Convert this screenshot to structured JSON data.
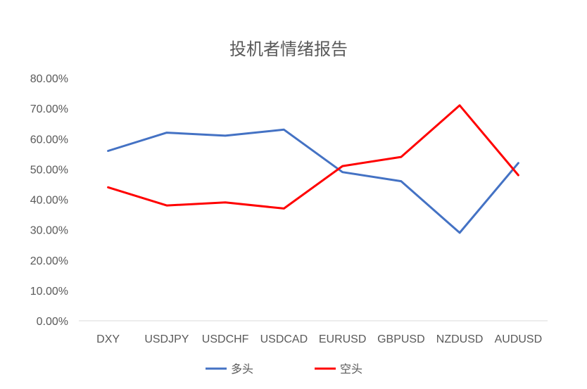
{
  "chart_data": {
    "type": "line",
    "title": "投机者情绪报告",
    "xlabel": "",
    "ylabel": "",
    "categories": [
      "DXY",
      "USDJPY",
      "USDCHF",
      "USDCAD",
      "EURUSD",
      "GBPUSD",
      "NZDUSD",
      "AUDUSD"
    ],
    "series": [
      {
        "name": "多头",
        "color": "#4472C4",
        "values": [
          56,
          62,
          61,
          63,
          49,
          46,
          29,
          52
        ]
      },
      {
        "name": "空头",
        "color": "#FF0000",
        "values": [
          44,
          38,
          39,
          37,
          51,
          54,
          71,
          48
        ]
      }
    ],
    "ylim": [
      0,
      80
    ],
    "yticks": [
      "0.00%",
      "10.00%",
      "20.00%",
      "30.00%",
      "40.00%",
      "50.00%",
      "60.00%",
      "70.00%",
      "80.00%"
    ],
    "grid": false,
    "legend": "bottom"
  }
}
